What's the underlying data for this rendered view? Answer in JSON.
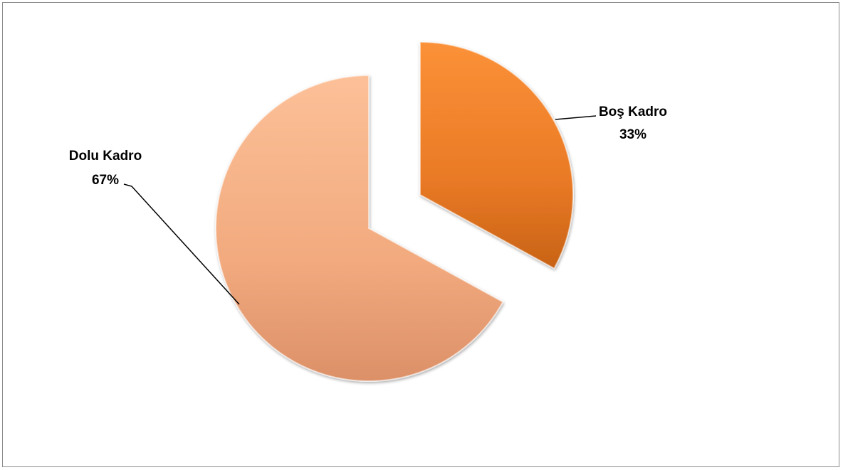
{
  "chart_data": {
    "type": "pie",
    "title": "",
    "slices": [
      {
        "label": "Dolu Kadro",
        "value": 67,
        "value_label": "67%"
      },
      {
        "label": "Boş Kadro",
        "value": 33,
        "value_label": "33%"
      }
    ],
    "colors": {
      "Dolu Kadro": "#f6b386",
      "Boş Kadro": "#e97a22"
    },
    "exploded": "Boş Kadro",
    "legend": "none",
    "data_labels": "outside-with-leader-lines"
  }
}
